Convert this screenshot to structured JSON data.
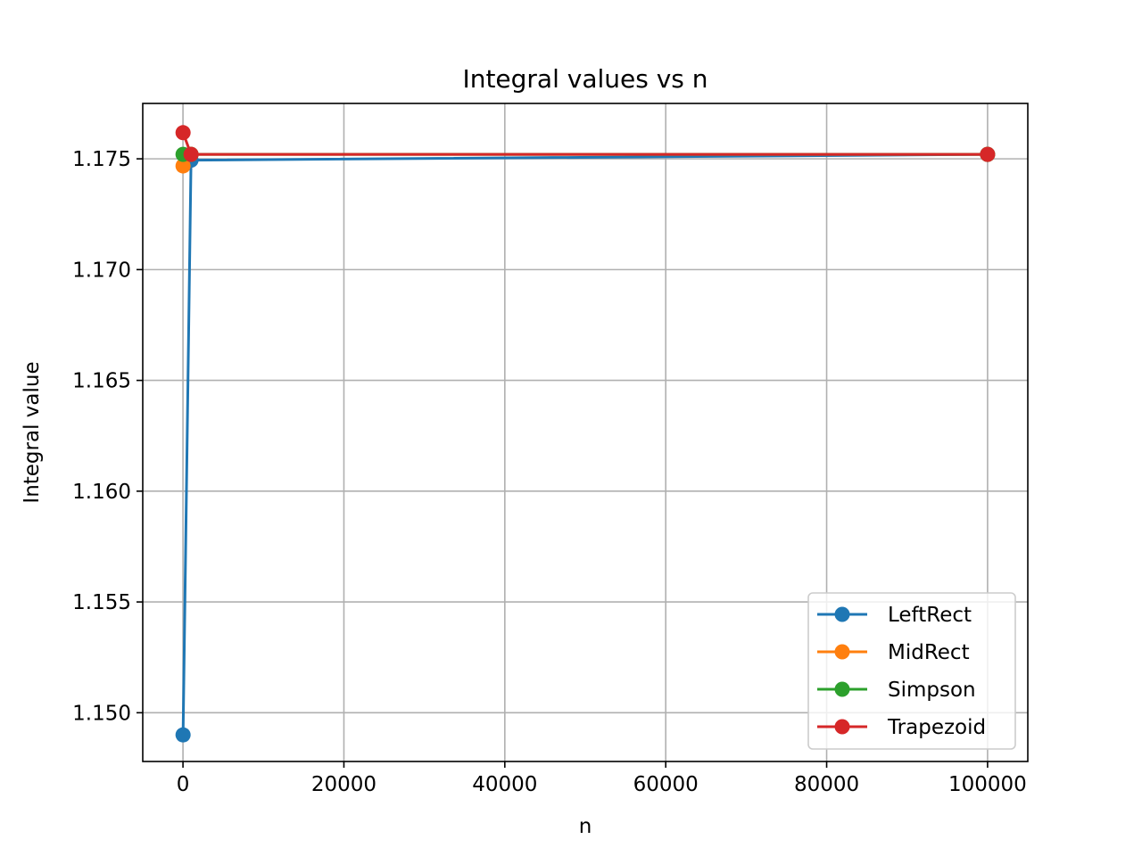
{
  "chart_data": {
    "type": "line",
    "title": "Integral values vs n",
    "xlabel": "n",
    "ylabel": "Integral value",
    "xlim": [
      -5000,
      105000
    ],
    "ylim": [
      1.1478,
      1.1775
    ],
    "x_ticks": [
      0,
      20000,
      40000,
      60000,
      80000,
      100000
    ],
    "x_tick_labels": [
      "0",
      "20000",
      "40000",
      "60000",
      "80000",
      "100000"
    ],
    "y_ticks": [
      1.15,
      1.155,
      1.16,
      1.165,
      1.17,
      1.175
    ],
    "y_tick_labels": [
      "1.150",
      "1.155",
      "1.160",
      "1.165",
      "1.170",
      "1.175"
    ],
    "grid": true,
    "legend_position": "lower-right",
    "x": [
      10,
      1000,
      100000
    ],
    "series": [
      {
        "name": "LeftRect",
        "color": "#1f77b4",
        "values": [
          1.149,
          1.17494,
          1.1752
        ]
      },
      {
        "name": "MidRect",
        "color": "#ff7f0e",
        "values": [
          1.17468,
          1.1752,
          1.1752
        ]
      },
      {
        "name": "Simpson",
        "color": "#2ca02c",
        "values": [
          1.1752,
          1.1752,
          1.1752
        ]
      },
      {
        "name": "Trapezoid",
        "color": "#d62728",
        "values": [
          1.17618,
          1.1752,
          1.1752
        ]
      }
    ]
  }
}
